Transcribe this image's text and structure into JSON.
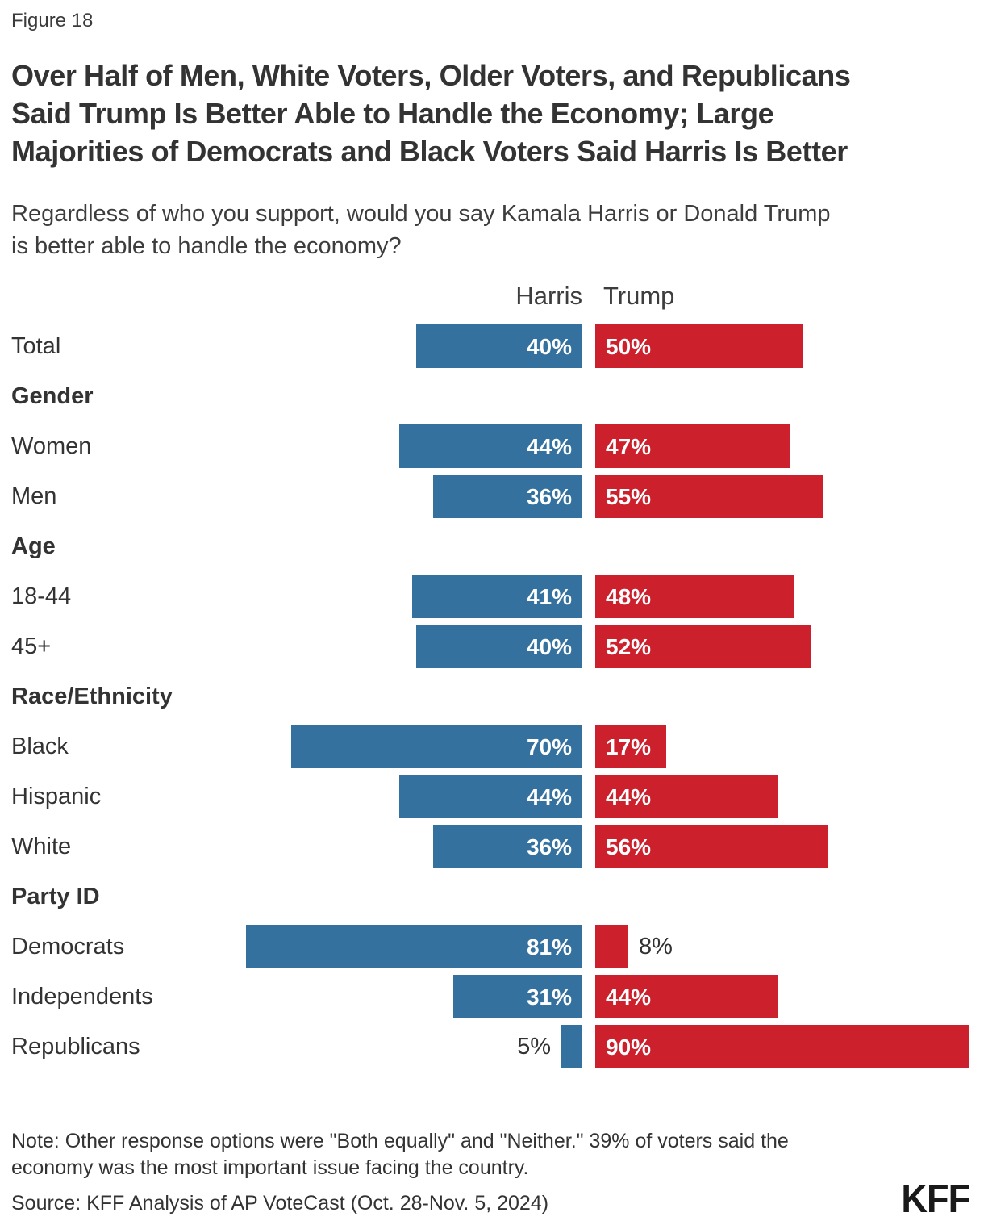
{
  "figure_label": "Figure 18",
  "title_lines": [
    "Over Half of Men, White Voters, Older Voters, and Republicans",
    "Said Trump Is Better Able to Handle the Economy; Large",
    "Majorities of Democrats and Black Voters Said Harris Is Better"
  ],
  "subtitle_lines": [
    "Regardless of who you support, would you say Kamala Harris or Donald Trump",
    "is better able to handle the economy?"
  ],
  "note_lines": [
    "Note: Other response options were \"Both equally\" and \"Neither.\" 39% of voters said the",
    "economy was the most important issue facing the country."
  ],
  "source": "Source: KFF Analysis of AP VoteCast (Oct. 28-Nov. 5, 2024)",
  "logo": "KFF",
  "colors": {
    "harris": "#34719F",
    "trump": "#CD202D",
    "text_dark": "#333333"
  },
  "chart_data": {
    "type": "bar",
    "orientation": "horizontal-diverging",
    "unit": "%",
    "series_names": [
      "Harris",
      "Trump"
    ],
    "legend_position": "column-headers-above-bars",
    "grid": false,
    "axis_range": [
      0,
      100
    ],
    "rows": [
      {
        "label": "Total",
        "type": "data",
        "harris": 40,
        "trump": 50
      },
      {
        "label": "Gender",
        "type": "group"
      },
      {
        "label": "Women",
        "type": "data",
        "harris": 44,
        "trump": 47
      },
      {
        "label": "Men",
        "type": "data",
        "harris": 36,
        "trump": 55
      },
      {
        "label": "Age",
        "type": "group"
      },
      {
        "label": "18-44",
        "type": "data",
        "harris": 41,
        "trump": 48
      },
      {
        "label": "45+",
        "type": "data",
        "harris": 40,
        "trump": 52
      },
      {
        "label": "Race/Ethnicity",
        "type": "group"
      },
      {
        "label": "Black",
        "type": "data",
        "harris": 70,
        "trump": 17
      },
      {
        "label": "Hispanic",
        "type": "data",
        "harris": 44,
        "trump": 44
      },
      {
        "label": "White",
        "type": "data",
        "harris": 36,
        "trump": 56
      },
      {
        "label": "Party ID",
        "type": "group"
      },
      {
        "label": "Democrats",
        "type": "data",
        "harris": 81,
        "trump": 8
      },
      {
        "label": "Independents",
        "type": "data",
        "harris": 31,
        "trump": 44
      },
      {
        "label": "Republicans",
        "type": "data",
        "harris": 5,
        "trump": 90
      }
    ]
  }
}
